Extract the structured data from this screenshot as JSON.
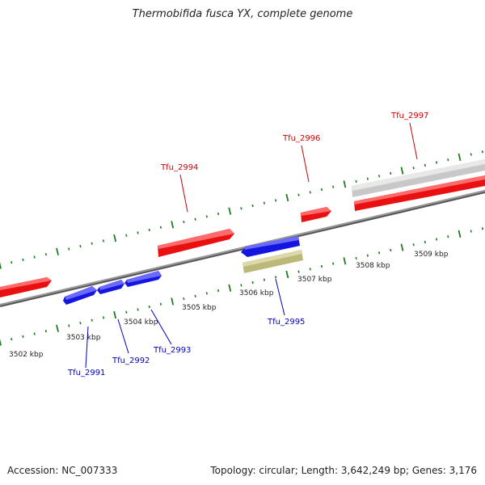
{
  "title": "Thermobifida fusca YX, complete genome",
  "footer": {
    "accession": "Accession: NC_007333",
    "summary": "Topology: circular; Length: 3,642,249 bp; Genes: 3,176"
  },
  "colors": {
    "red_gene": "#e81010",
    "blue_gene": "#1515e0",
    "grey_gene": "#c8c8c8",
    "olive_gene": "#bcb878",
    "backbone": "#888888",
    "ticks": "#1e7a1e",
    "red_label": "#cc0000",
    "blue_label": "#0000bb"
  },
  "scale_labels": [
    "3502 kbp",
    "3503 kbp",
    "3504 kbp",
    "3505 kbp",
    "3506 kbp",
    "3507 kbp",
    "3508 kbp",
    "3509 kbp"
  ],
  "gene_labels": [
    "Tfu_2991",
    "Tfu_2992",
    "Tfu_2993",
    "Tfu_2994",
    "Tfu_2995",
    "Tfu_2996",
    "Tfu_2997"
  ]
}
